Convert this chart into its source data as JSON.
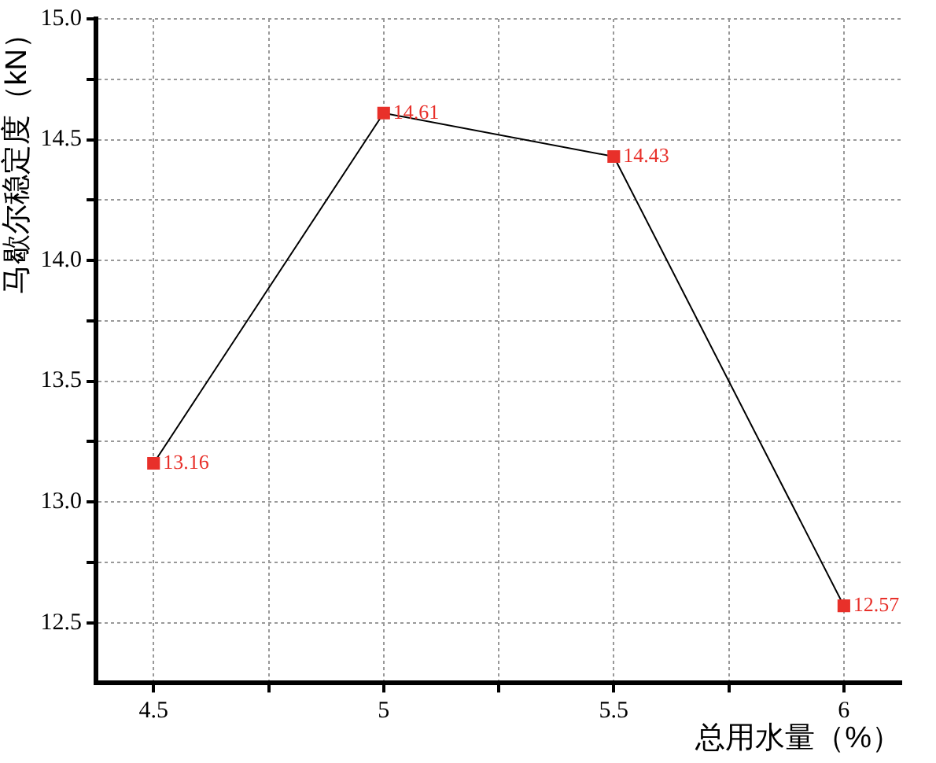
{
  "chart_data": {
    "type": "line",
    "xlabel": "总用水量（%）",
    "ylabel": "马歇尔稳定度（kN）",
    "x": [
      4.5,
      5,
      5.5,
      6
    ],
    "series": [
      {
        "color": "#e8302a",
        "values": [
          13.16,
          14.61,
          14.43,
          12.57
        ]
      }
    ],
    "xlim": [
      4.375,
      6.125
    ],
    "xticks": [
      4.5,
      {
        "value": 4.75,
        "label": null
      },
      5,
      {
        "value": 5.25,
        "label": null
      },
      5.5,
      {
        "value": 5.75,
        "label": null
      },
      6
    ],
    "ylim": [
      12.25,
      15.0
    ],
    "yticks": [
      {
        "value": 12.5,
        "label": "12.5"
      },
      {
        "value": 12.75,
        "label": null
      },
      {
        "value": 13.0,
        "label": "13.0"
      },
      {
        "value": 13.25,
        "label": null
      },
      {
        "value": 13.5,
        "label": "13.5"
      },
      {
        "value": 13.75,
        "label": null
      },
      {
        "value": 14.0,
        "label": "14.0"
      },
      {
        "value": 14.25,
        "label": null
      },
      {
        "value": 14.5,
        "label": "14.5"
      },
      {
        "value": 14.75,
        "label": null
      },
      {
        "value": 15.0,
        "label": "15.0"
      }
    ],
    "grid": true,
    "marker": "square",
    "line_style": "solid",
    "data_labels": true,
    "legend": false
  }
}
